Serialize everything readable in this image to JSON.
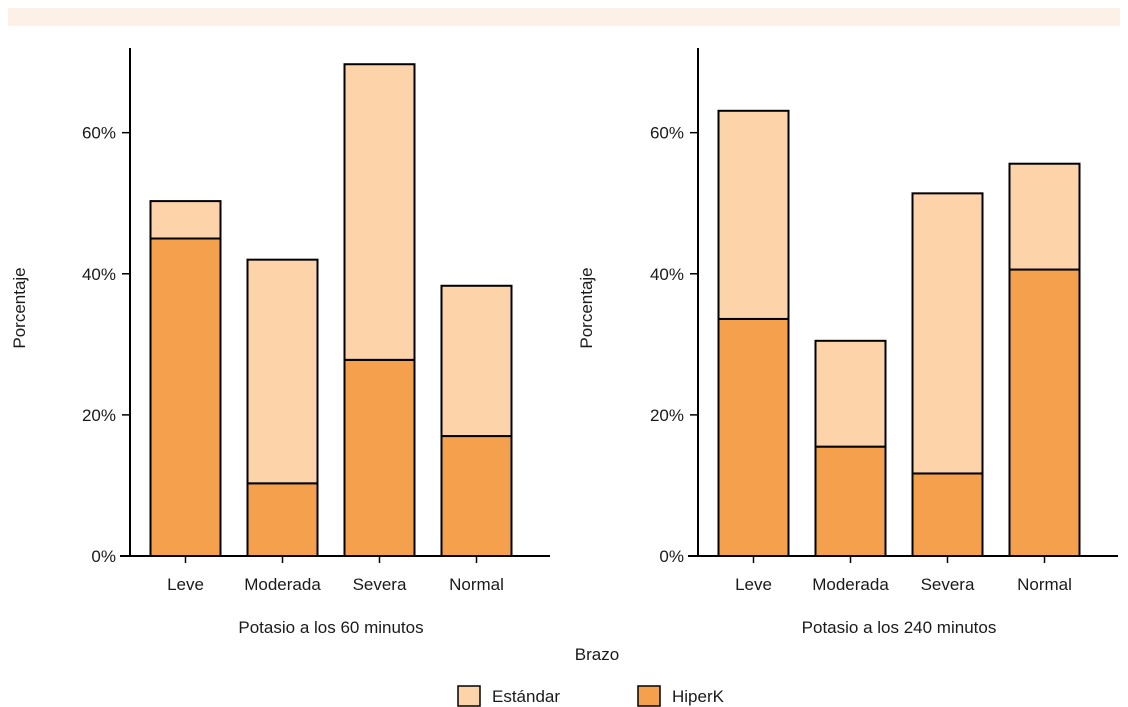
{
  "chart_data": {
    "type": "bar",
    "stacked": true,
    "shared_xlabel": "Brazo",
    "legend": {
      "placement": "bottom-center",
      "entries": [
        {
          "name": "Estándar",
          "color": "#fdd3aa"
        },
        {
          "name": "HiperK",
          "color": "#f5a04d"
        }
      ]
    },
    "panels": [
      {
        "xlabel": "Potasio a los 60 minutos",
        "ylabel": "Porcentaje",
        "categories": [
          "Leve",
          "Moderada",
          "Severa",
          "Normal"
        ],
        "ylim": [
          0,
          72
        ],
        "yticks": [
          0,
          20,
          40,
          60
        ],
        "yticklabels": [
          "0%",
          "20%",
          "40%",
          "60%"
        ],
        "series": [
          {
            "name": "HiperK",
            "values": [
              45,
              10.3,
              27.8,
              17
            ]
          },
          {
            "name": "Estándar",
            "values": [
              5.3,
              31.7,
              41.9,
              21.3
            ]
          }
        ]
      },
      {
        "xlabel": "Potasio a los 240 minutos",
        "ylabel": "Porcentaje",
        "categories": [
          "Leve",
          "Moderada",
          "Severa",
          "Normal"
        ],
        "ylim": [
          0,
          72
        ],
        "yticks": [
          0,
          20,
          40,
          60
        ],
        "yticklabels": [
          "0%",
          "20%",
          "40%",
          "60%"
        ],
        "series": [
          {
            "name": "HiperK",
            "values": [
              33.6,
              15.5,
              11.7,
              40.6
            ]
          },
          {
            "name": "Estándar",
            "values": [
              29.5,
              15,
              39.7,
              15
            ]
          }
        ]
      }
    ]
  },
  "colors": {
    "banner": "#fdf0e6",
    "outline": "#000000"
  }
}
